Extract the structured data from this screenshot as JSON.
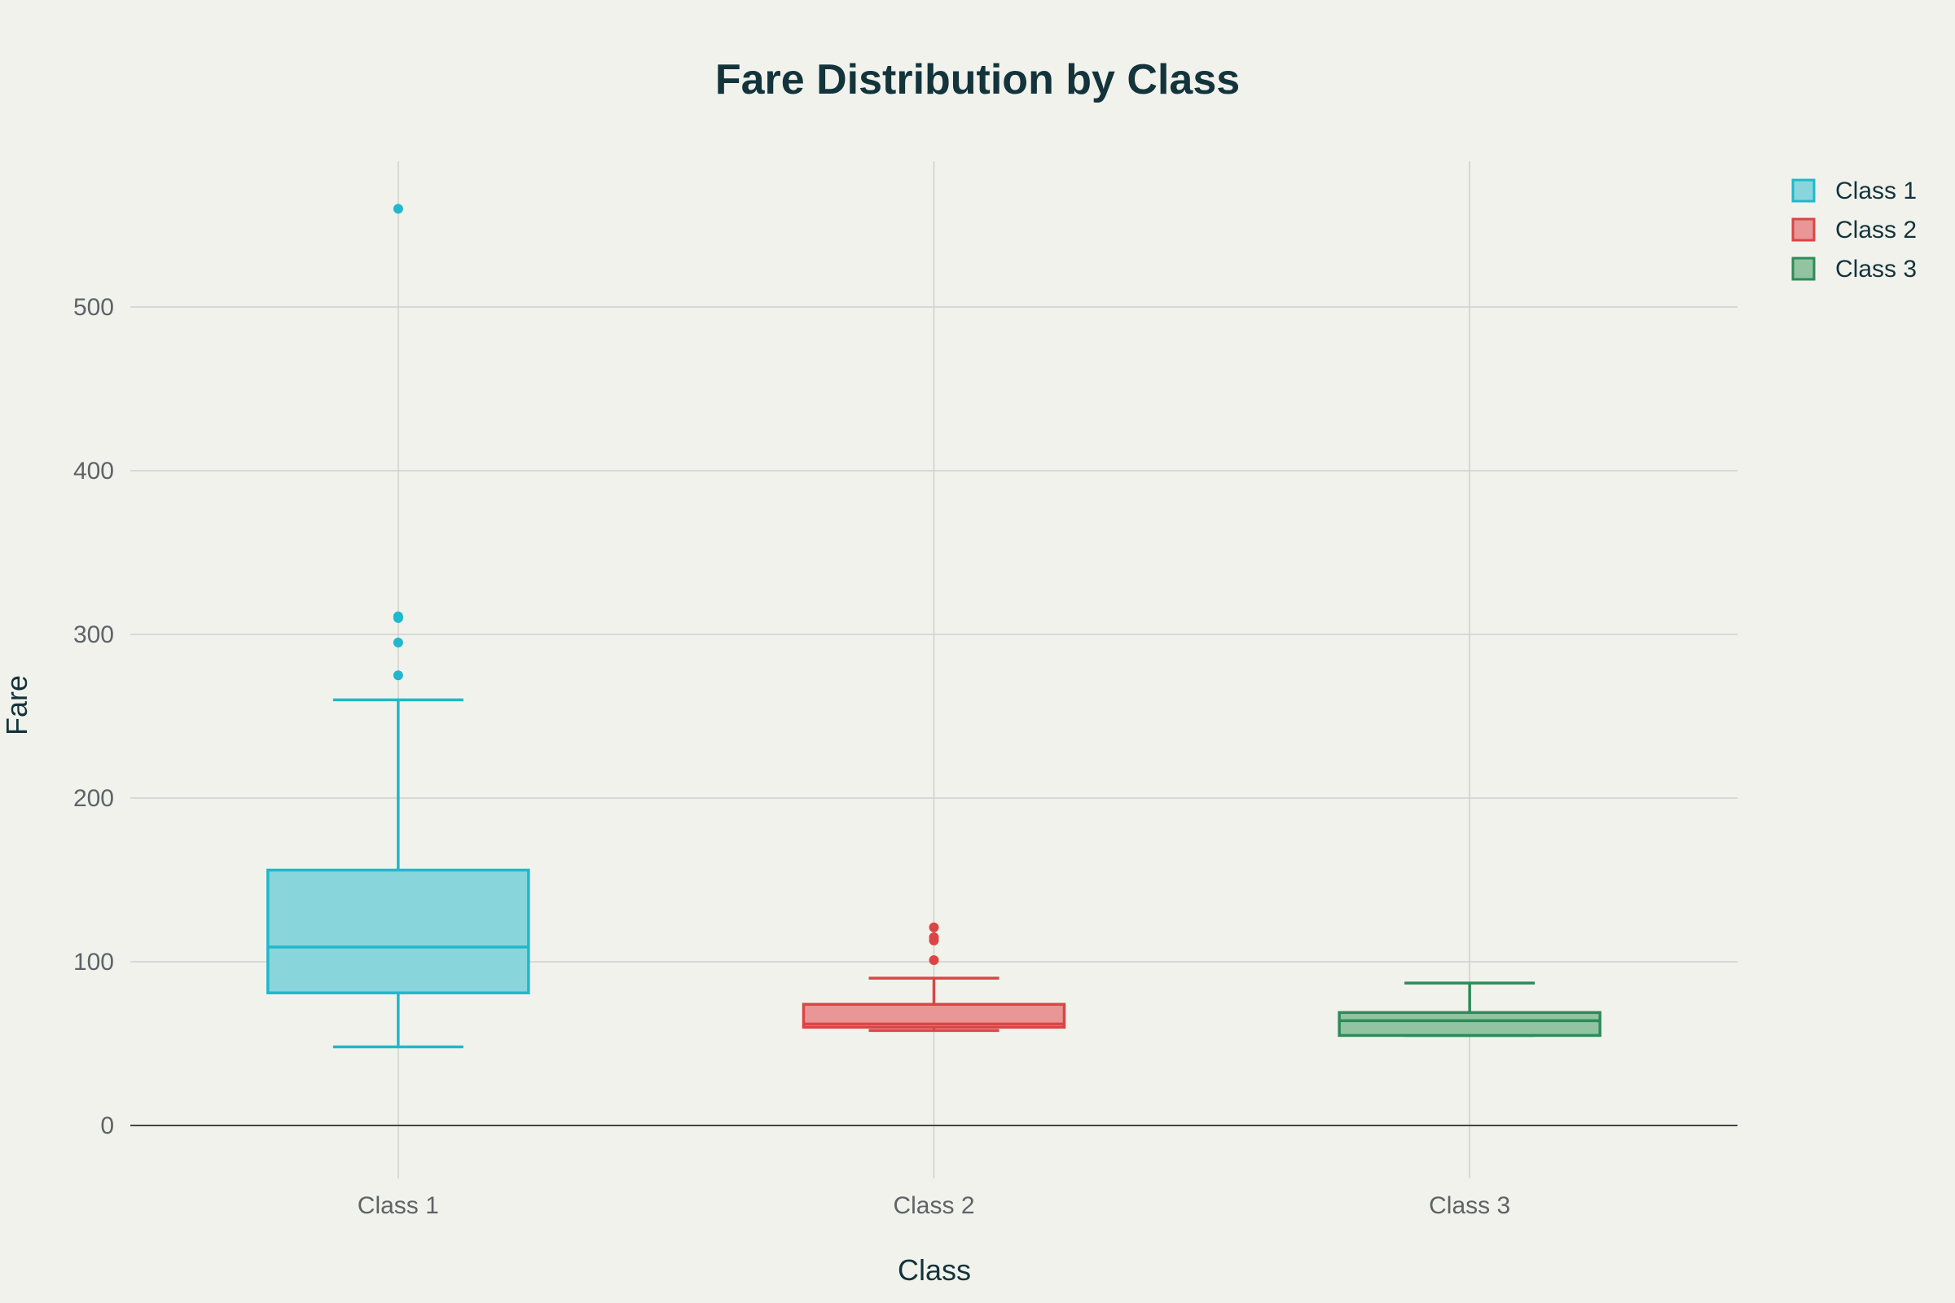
{
  "chart_data": {
    "type": "box",
    "title": "Fare Distribution by Class",
    "xlabel": "Class",
    "ylabel": "Fare",
    "ylim": [
      -35,
      590
    ],
    "yticks": [
      0,
      100,
      200,
      300,
      400,
      500
    ],
    "categories": [
      "Class 1",
      "Class 2",
      "Class 3"
    ],
    "grid": true,
    "legend_position": "top-right",
    "series": [
      {
        "name": "Class 1",
        "category": "Class 1",
        "color": "#1fb8cd",
        "fill": "#89d5dc",
        "whisker_low": 48,
        "q1": 81,
        "median": 109,
        "q3": 156,
        "whisker_high": 260,
        "outliers": [
          275,
          295,
          310,
          311,
          560
        ]
      },
      {
        "name": "Class 2",
        "category": "Class 2",
        "color": "#db4545",
        "fill": "#e89696",
        "whisker_low": 58,
        "q1": 60,
        "median": 62,
        "q3": 74,
        "whisker_high": 90,
        "outliers": [
          101,
          113,
          115,
          121
        ]
      },
      {
        "name": "Class 3",
        "category": "Class 3",
        "color": "#2e8b57",
        "fill": "#92c4a2",
        "whisker_low": 55,
        "q1": 55,
        "median": 64,
        "q3": 69,
        "whisker_high": 87,
        "outliers": []
      }
    ]
  }
}
